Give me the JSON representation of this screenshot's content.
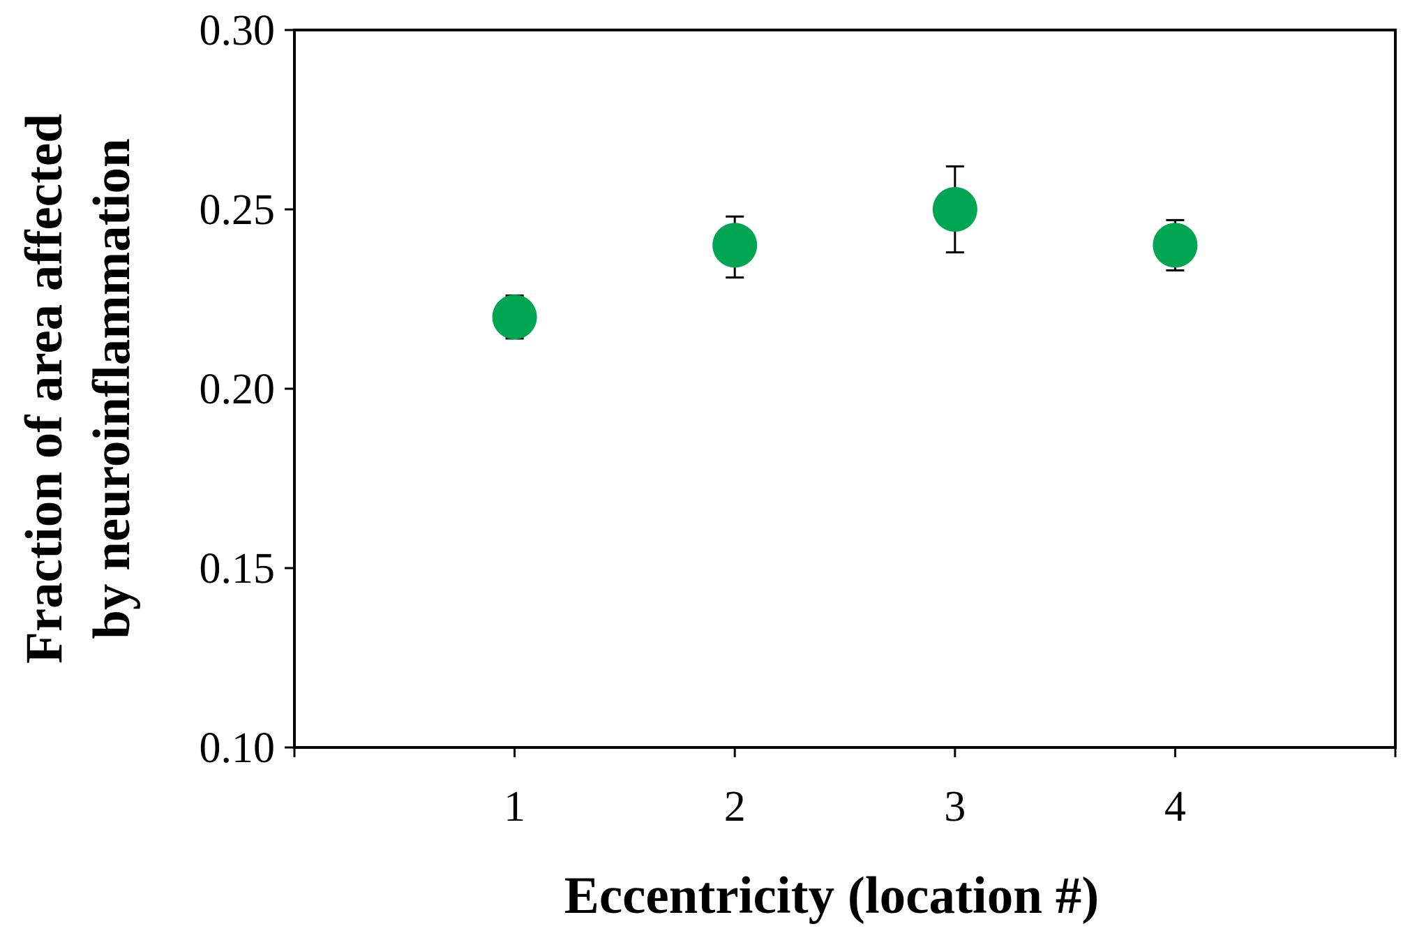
{
  "chart_data": {
    "type": "scatter",
    "title": "",
    "xlabel": "Eccentricity (location #)",
    "ylabel_lines": [
      "Fraction of area affected",
      "by neuroinflammation"
    ],
    "x_ticks": [
      "1",
      "2",
      "3",
      "4"
    ],
    "y_ticks": [
      "0.10",
      "0.15",
      "0.20",
      "0.25",
      "0.30"
    ],
    "xlim": [
      0,
      5
    ],
    "ylim": [
      0.1,
      0.3
    ],
    "grid": false,
    "legend": "none",
    "marker_color": "#00a651",
    "points": [
      {
        "x": 1,
        "y": 0.22,
        "err_low": 0.006,
        "err_high": 0.006
      },
      {
        "x": 2,
        "y": 0.24,
        "err_low": 0.009,
        "err_high": 0.008
      },
      {
        "x": 3,
        "y": 0.25,
        "err_low": 0.012,
        "err_high": 0.012
      },
      {
        "x": 4,
        "y": 0.24,
        "err_low": 0.007,
        "err_high": 0.007
      }
    ]
  }
}
